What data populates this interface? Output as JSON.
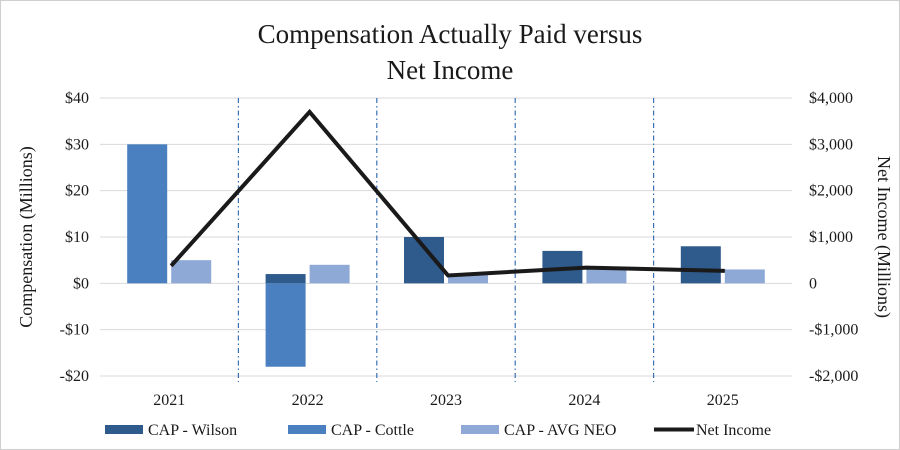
{
  "chart_data": {
    "type": "bar",
    "title_lines": [
      "Compensation Actually Paid versus",
      "Net Income"
    ],
    "categories": [
      "2021",
      "2022",
      "2023",
      "2024",
      "2025"
    ],
    "ylabel_left": "Compensation (Millions)",
    "ylabel_right": "Net Income (Millions)",
    "ylim_left": [
      -20,
      40
    ],
    "ylim_right": [
      -2000,
      4000
    ],
    "yticks_left": [
      -20,
      -10,
      0,
      10,
      20,
      30,
      40
    ],
    "yticks_left_labels": [
      "-$20",
      "-$10",
      "$0",
      "$10",
      "$20",
      "$30",
      "$40"
    ],
    "yticks_right": [
      -2000,
      -1000,
      0,
      1000,
      2000,
      3000,
      4000
    ],
    "yticks_right_labels": [
      "-$2,000",
      "-$1,000",
      "0",
      "$1,000",
      "$2,000",
      "$3,000",
      "$4,000"
    ],
    "grid": "horizontal",
    "category_separators": "dash-dot vertical lines between years",
    "legend_position": "bottom",
    "series": [
      {
        "name": "CAP - Wilson",
        "kind": "bar",
        "axis": "left",
        "color": "#2f5a8c",
        "values": [
          null,
          2,
          10,
          7,
          8
        ]
      },
      {
        "name": "CAP - Cottle",
        "kind": "bar",
        "axis": "left",
        "color": "#4a7fc0",
        "values": [
          30,
          -18,
          null,
          null,
          null
        ]
      },
      {
        "name": "CAP - AVG NEO",
        "kind": "bar",
        "axis": "left",
        "color": "#8fa9d6",
        "values": [
          5,
          4,
          2,
          3,
          3
        ]
      },
      {
        "name": "Net Income",
        "kind": "line",
        "axis": "right",
        "color": "#1a1a1a",
        "values": [
          380,
          3700,
          170,
          340,
          270
        ]
      }
    ]
  }
}
